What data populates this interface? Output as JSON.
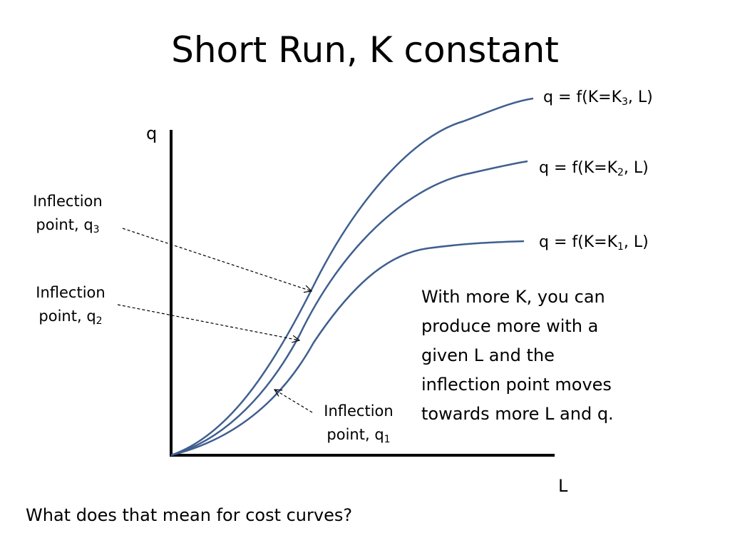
{
  "title": "Short Run, K constant",
  "axes": {
    "y_label": "q",
    "x_label": "L"
  },
  "curves": [
    {
      "pre": "q = f(K=K",
      "sub": "3",
      "post": ", L)"
    },
    {
      "pre": "q = f(K=K",
      "sub": "2",
      "post": ", L)"
    },
    {
      "pre": "q = f(K=K",
      "sub": "1",
      "post": ", L)"
    }
  ],
  "inflection_labels": [
    {
      "line1": "Inflection",
      "line2": "point, q",
      "sub": "3"
    },
    {
      "line1": "Inflection",
      "line2": "point, q",
      "sub": "2"
    },
    {
      "line1": "Inflection",
      "line2": "point, q",
      "sub": "1"
    }
  ],
  "note_lines": [
    "With more K, you can",
    "produce more with a",
    "given L and the",
    "inflection point moves",
    "towards more L and q."
  ],
  "question": "What does that mean for cost curves?",
  "colors": {
    "curve": "#3f5f8f",
    "axis": "#000000",
    "text": "#000000"
  }
}
